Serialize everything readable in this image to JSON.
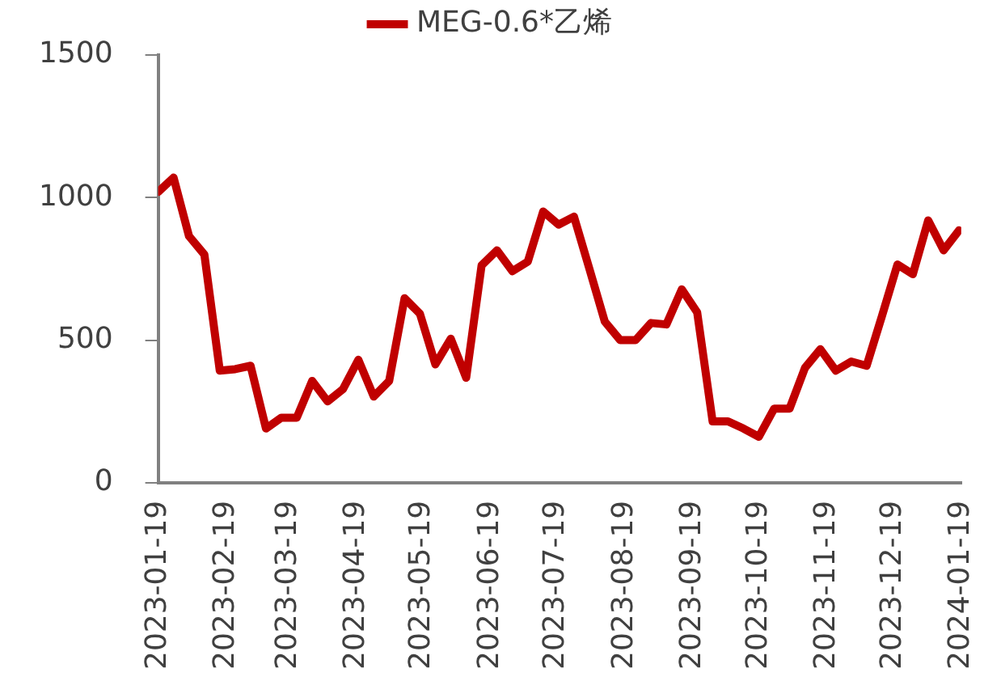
{
  "chart_data": {
    "type": "line",
    "x": [
      "2023-01-19",
      "2023-01-26",
      "2023-02-02",
      "2023-02-09",
      "2023-02-16",
      "2023-02-23",
      "2023-03-02",
      "2023-03-09",
      "2023-03-16",
      "2023-03-23",
      "2023-03-30",
      "2023-04-06",
      "2023-04-13",
      "2023-04-20",
      "2023-04-27",
      "2023-05-04",
      "2023-05-11",
      "2023-05-18",
      "2023-05-25",
      "2023-06-01",
      "2023-06-08",
      "2023-06-15",
      "2023-06-22",
      "2023-06-29",
      "2023-07-06",
      "2023-07-13",
      "2023-07-20",
      "2023-07-27",
      "2023-08-03",
      "2023-08-10",
      "2023-08-17",
      "2023-08-24",
      "2023-08-31",
      "2023-09-07",
      "2023-09-14",
      "2023-09-21",
      "2023-09-28",
      "2023-10-05",
      "2023-10-12",
      "2023-10-19",
      "2023-10-26",
      "2023-11-02",
      "2023-11-09",
      "2023-11-16",
      "2023-11-23",
      "2023-11-30",
      "2023-12-07",
      "2023-12-14",
      "2023-12-21",
      "2023-12-28",
      "2024-01-04",
      "2024-01-11",
      "2024-01-18"
    ],
    "series": [
      {
        "name": "MEG-0.6*乙烯",
        "color": "#c00000",
        "values": [
          1020,
          1070,
          865,
          800,
          393,
          398,
          410,
          190,
          228,
          228,
          357,
          285,
          328,
          431,
          302,
          357,
          647,
          592,
          415,
          505,
          368,
          762,
          815,
          742,
          775,
          951,
          905,
          933,
          750,
          565,
          500,
          500,
          560,
          555,
          678,
          597,
          215,
          215,
          190,
          161,
          260,
          260,
          403,
          468,
          393,
          425,
          410,
          585,
          765,
          731,
          920,
          815,
          885
        ]
      }
    ],
    "xlim": [
      "2023-01-19",
      "2024-01-19"
    ],
    "xticks": [
      "2023-01-19",
      "2023-02-19",
      "2023-03-19",
      "2023-04-19",
      "2023-05-19",
      "2023-06-19",
      "2023-07-19",
      "2023-08-19",
      "2023-09-19",
      "2023-10-19",
      "2023-11-19",
      "2023-12-19",
      "2024-01-19"
    ],
    "ylim": [
      0,
      1500
    ],
    "yticks": [
      0,
      500,
      1000,
      1500
    ],
    "grid": false,
    "legend": "top",
    "marker": "none",
    "line_style": "solid"
  }
}
